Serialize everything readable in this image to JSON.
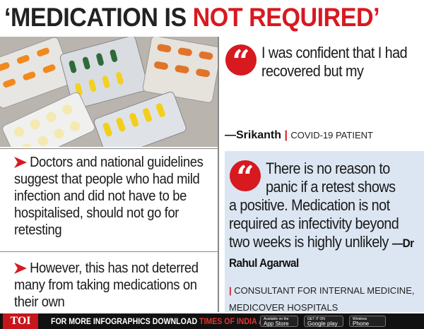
{
  "header": {
    "title_main": "‘MEDICATION IS",
    "title_highlight": "NOT REQUIRED’"
  },
  "quotes": [
    {
      "text_first": "I was confident that I had recovered but my",
      "text_rest": "",
      "speaker": "—Srikanth",
      "role": "COVID-19 PATIENT"
    },
    {
      "text_first": "There is no reason to panic if a retest shows",
      "text_rest": "a positive. Medication is not required as infectivity beyond two weeks is highly unlikely",
      "speaker": "—Dr Rahul Agarwal",
      "role": "CONSULTANT FOR INTERNAL MEDICINE, MEDICOVER HOSPITALS"
    }
  ],
  "bullets": [
    "Doctors and national guidelines suggest that people who had mild infection and did not have to be hospitalised, should not go for retesting",
    "However, this has not deterred many from taking medications on their own"
  ],
  "footer": {
    "logo": "TOI",
    "promo": "FOR MORE INFOGRAPHICS DOWNLOAD",
    "app_name": "TIMES OF INDIA APP",
    "badges": [
      {
        "small": "Available on the",
        "big": "App Store"
      },
      {
        "small": "GET IT ON",
        "big": "Google play"
      },
      {
        "small": "Windows",
        "big": "Phone"
      }
    ]
  }
}
